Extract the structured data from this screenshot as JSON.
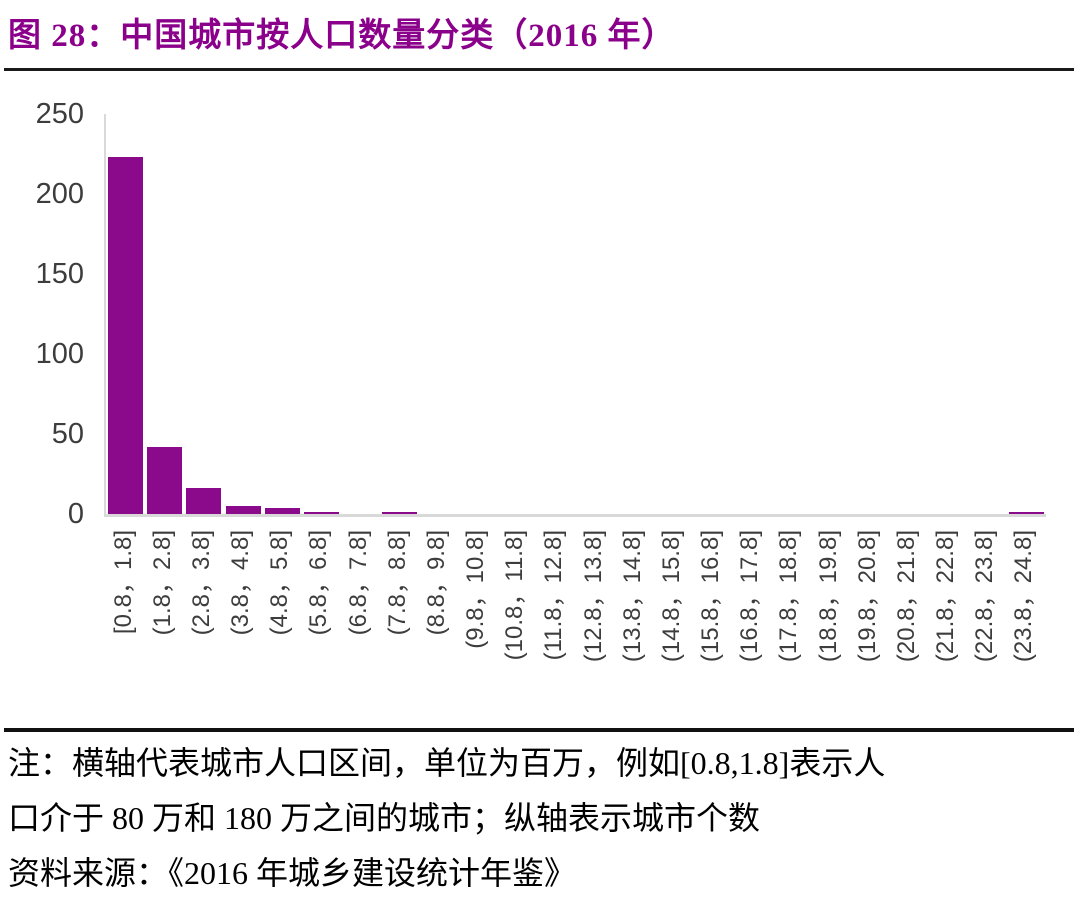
{
  "page": {
    "title": "图 28：中国城市按人口数量分类（2016 年）"
  },
  "chart_data": {
    "type": "bar",
    "title": "中国城市按人口数量分类（2016 年）",
    "categories": [
      "[0.8，1.8]",
      "(1.8，2.8]",
      "(2.8，3.8]",
      "(3.8，4.8]",
      "(4.8，5.8]",
      "(5.8，6.8]",
      "(6.8，7.8]",
      "(7.8，8.8]",
      "(8.8，9.8]",
      "(9.8，10.8]",
      "(10.8，11.8]",
      "(11.8，12.8]",
      "(12.8，13.8]",
      "(13.8，14.8]",
      "(14.8，15.8]",
      "(15.8，16.8]",
      "(16.8，17.8]",
      "(17.8，18.8]",
      "(18.8，19.8]",
      "(19.8，20.8]",
      "(20.8，21.8]",
      "(21.8，22.8]",
      "(22.8，23.8]",
      "(23.8，24.8]"
    ],
    "values": [
      223,
      42,
      16,
      5,
      4,
      1,
      0,
      1,
      0,
      0,
      0,
      0,
      0,
      0,
      0,
      0,
      0,
      0,
      0,
      0,
      0,
      0,
      0,
      1
    ],
    "xlabel": "",
    "ylabel": "",
    "ylim": [
      0,
      250
    ],
    "yticks": [
      0,
      50,
      100,
      150,
      200,
      250
    ],
    "grid": false,
    "legend_position": "none",
    "bar_color": "#8B0A8B",
    "axis_line_color": "#D9D9D9",
    "tick_text_color": "#3D3D3D"
  },
  "colors": {
    "title_text": "#8B008B",
    "separator_rule": "#1A1A1A",
    "note_text": "#000000",
    "background": "#FFFFFF"
  },
  "notes": {
    "line1": "注：横轴代表城市人口区间，单位为百万，例如[0.8,1.8]表示人",
    "line2": "口介于 80 万和 180 万之间的城市；纵轴表示城市个数",
    "line3": "资料来源：《2016 年城乡建设统计年鉴》"
  }
}
